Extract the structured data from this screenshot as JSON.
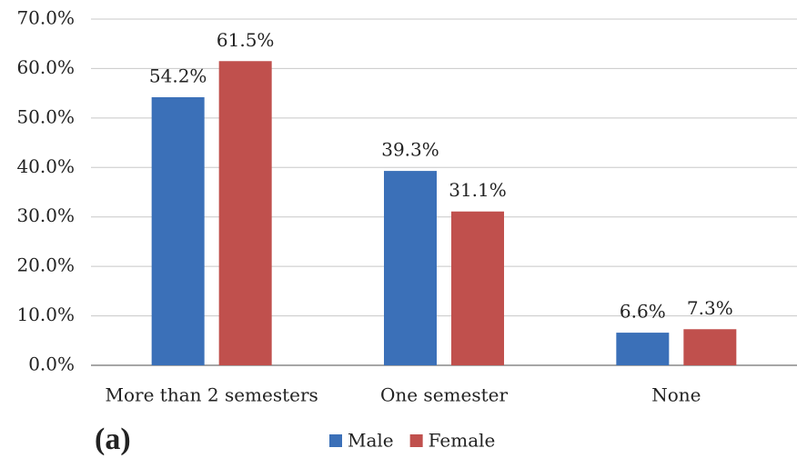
{
  "chart_data": {
    "type": "bar",
    "categories": [
      "More than 2 semesters",
      "One semester",
      "None"
    ],
    "series": [
      {
        "name": "Male",
        "color": "#3b70b8",
        "values": [
          54.2,
          39.3,
          6.6
        ],
        "value_labels": [
          "54.2%",
          "39.3%",
          "6.6%"
        ]
      },
      {
        "name": "Female",
        "color": "#c0504d",
        "values": [
          61.5,
          31.1,
          7.3
        ],
        "value_labels": [
          "61.5%",
          "31.1%",
          "7.3%"
        ]
      }
    ],
    "ylim": [
      0,
      70
    ],
    "yticks": [
      {
        "value": 0,
        "label": "0.0%"
      },
      {
        "value": 10,
        "label": "10.0%"
      },
      {
        "value": 20,
        "label": "20.0%"
      },
      {
        "value": 30,
        "label": "30.0%"
      },
      {
        "value": 40,
        "label": "40.0%"
      },
      {
        "value": 50,
        "label": "50.0%"
      },
      {
        "value": 60,
        "label": "60.0%"
      },
      {
        "value": 70,
        "label": "70.0%"
      }
    ],
    "grid": true,
    "legend": "bottom",
    "annotation": "(a)"
  }
}
